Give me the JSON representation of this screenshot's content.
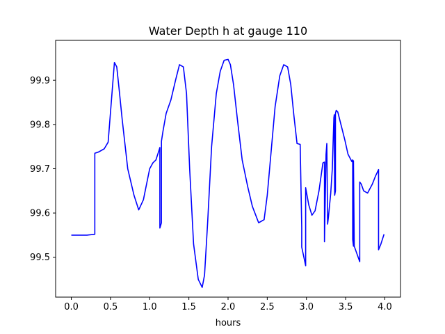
{
  "chart_data": {
    "type": "line",
    "title": "Water Depth h at gauge 110",
    "xlabel": "hours",
    "ylabel": "",
    "xlim": [
      -0.2,
      4.2
    ],
    "ylim": [
      99.41,
      99.99
    ],
    "xticks": [
      0.0,
      0.5,
      1.0,
      1.5,
      2.0,
      2.5,
      3.0,
      3.5,
      4.0
    ],
    "xtick_labels": [
      "0.0",
      "0.5",
      "1.0",
      "1.5",
      "2.0",
      "2.5",
      "3.0",
      "3.5",
      "4.0"
    ],
    "yticks": [
      99.5,
      99.6,
      99.7,
      99.8,
      99.9
    ],
    "ytick_labels": [
      "99.5",
      "99.6",
      "99.7",
      "99.8",
      "99.9"
    ],
    "grid": false,
    "series": [
      {
        "color": "#0000ff",
        "x": [
          0.0,
          0.1,
          0.2,
          0.3,
          0.3,
          0.35,
          0.42,
          0.47,
          0.51,
          0.55,
          0.58,
          0.61,
          0.65,
          0.72,
          0.8,
          0.86,
          0.92,
          1.0,
          1.04,
          1.08,
          1.12,
          1.13,
          1.13,
          1.15,
          1.15,
          1.17,
          1.21,
          1.27,
          1.33,
          1.38,
          1.43,
          1.47,
          1.51,
          1.56,
          1.62,
          1.67,
          1.7,
          1.74,
          1.79,
          1.85,
          1.9,
          1.95,
          2.0,
          2.03,
          2.07,
          2.12,
          2.18,
          2.25,
          2.31,
          2.39,
          2.46,
          2.5,
          2.55,
          2.6,
          2.66,
          2.71,
          2.76,
          2.8,
          2.84,
          2.88,
          2.92,
          2.94,
          2.94,
          2.99,
          2.99,
          3.03,
          3.07,
          3.11,
          3.16,
          3.21,
          3.23,
          3.23,
          3.25,
          3.26,
          3.27,
          3.28,
          3.31,
          3.33,
          3.35,
          3.355,
          3.36,
          3.37,
          3.37,
          3.38,
          3.4,
          3.44,
          3.49,
          3.53,
          3.58,
          3.59,
          3.59,
          3.6,
          3.6,
          3.61,
          3.68,
          3.68,
          3.7,
          3.73,
          3.78,
          3.84,
          3.88,
          3.92,
          3.92,
          3.95,
          3.99
        ],
        "y": [
          99.55,
          99.55,
          99.55,
          99.552,
          99.735,
          99.738,
          99.745,
          99.76,
          99.85,
          99.94,
          99.93,
          99.88,
          99.81,
          99.7,
          99.64,
          99.607,
          99.63,
          99.7,
          99.713,
          99.72,
          99.742,
          99.748,
          99.566,
          99.578,
          99.762,
          99.785,
          99.825,
          99.855,
          99.9,
          99.935,
          99.93,
          99.87,
          99.7,
          99.53,
          99.45,
          99.432,
          99.46,
          99.58,
          99.75,
          99.87,
          99.92,
          99.945,
          99.947,
          99.935,
          99.89,
          99.81,
          99.72,
          99.66,
          99.615,
          99.578,
          99.585,
          99.64,
          99.74,
          99.84,
          99.91,
          99.935,
          99.93,
          99.89,
          99.82,
          99.757,
          99.755,
          99.567,
          99.523,
          99.481,
          99.657,
          99.618,
          99.595,
          99.605,
          99.65,
          99.713,
          99.715,
          99.535,
          99.732,
          99.757,
          99.575,
          99.59,
          99.645,
          99.7,
          99.815,
          99.822,
          99.64,
          99.65,
          99.825,
          99.832,
          99.828,
          99.8,
          99.765,
          99.733,
          99.716,
          99.72,
          99.54,
          99.525,
          99.718,
          99.525,
          99.49,
          99.67,
          99.665,
          99.65,
          99.645,
          99.665,
          99.683,
          99.698,
          99.517,
          99.53,
          99.552
        ]
      }
    ]
  }
}
